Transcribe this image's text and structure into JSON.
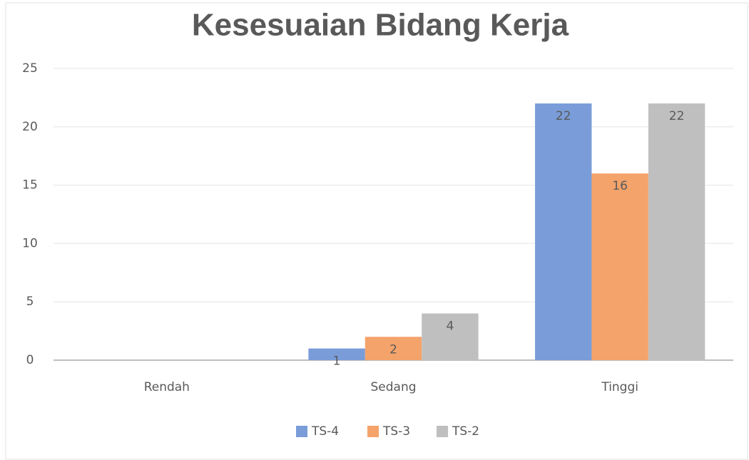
{
  "chart_data": {
    "type": "bar",
    "title": "Kesesuaian Bidang Kerja",
    "categories": [
      "Rendah",
      "Sedang",
      "Tinggi"
    ],
    "series": [
      {
        "name": "TS-4",
        "color": "#7a9dd9",
        "values": [
          null,
          1,
          22
        ]
      },
      {
        "name": "TS-3",
        "color": "#f4a36b",
        "values": [
          null,
          2,
          16
        ]
      },
      {
        "name": "TS-2",
        "color": "#bfbfbf",
        "values": [
          null,
          4,
          22
        ]
      }
    ],
    "ylim": [
      0,
      25
    ],
    "yticks": [
      0,
      5,
      10,
      15,
      20,
      25
    ],
    "grid": true,
    "legend": "bottom"
  }
}
